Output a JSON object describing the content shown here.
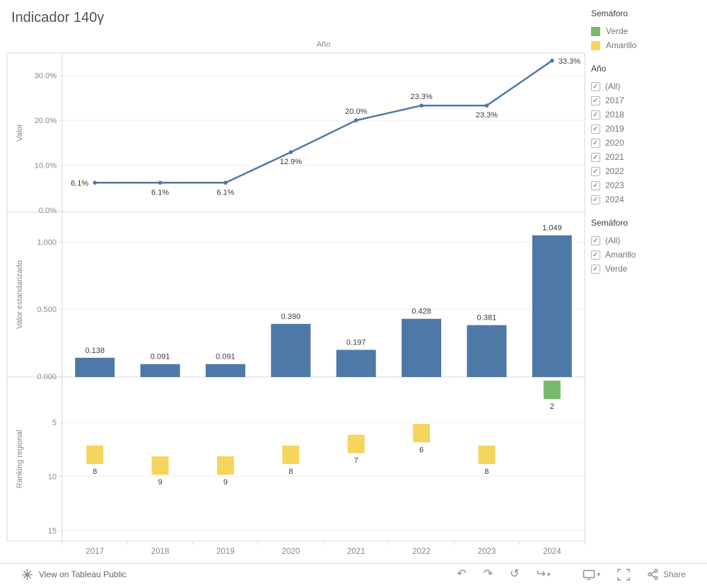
{
  "title": "Indicador 140γ",
  "colors": {
    "series_blue": "#4e79a7",
    "mark_yellow": "#f6d55c",
    "mark_green": "#77b96d",
    "axis_text": "#8a8881",
    "label_text": "#3c3c3c"
  },
  "legend": {
    "title": "Semáforo",
    "items": [
      {
        "label": "Verde",
        "color": "#77b96d"
      },
      {
        "label": "Amarillo",
        "color": "#f6d55c"
      }
    ]
  },
  "filters": {
    "check_glyph": "✓",
    "ano": {
      "title": "Año",
      "items": [
        "(All)",
        "2017",
        "2018",
        "2019",
        "2020",
        "2021",
        "2022",
        "2023",
        "2024"
      ]
    },
    "semaforo": {
      "title": "Semáforo",
      "items": [
        "(All)",
        "Amarillo",
        "Verde"
      ]
    }
  },
  "x_axis": {
    "categories": [
      "2017",
      "2018",
      "2019",
      "2020",
      "2021",
      "2022",
      "2023",
      "2024"
    ]
  },
  "chart_data": [
    {
      "type": "line",
      "title": "Año",
      "ylabel": "Valor",
      "categories": [
        "2017",
        "2018",
        "2019",
        "2020",
        "2021",
        "2022",
        "2023",
        "2024"
      ],
      "values": [
        6.1,
        6.1,
        6.1,
        12.9,
        20.0,
        23.3,
        23.3,
        33.3
      ],
      "point_labels": [
        "6.1%",
        "6.1%",
        "6.1%",
        "12.9%",
        "20.0%",
        "23.3%",
        "23.3%",
        "33.3%"
      ],
      "label_placement": [
        "left",
        "below",
        "below",
        "below",
        "above",
        "above",
        "below",
        "right"
      ],
      "yticks": [
        0,
        10,
        20,
        30
      ],
      "ytick_labels": [
        "0.0%",
        "10.0%",
        "20.0%",
        "30.0%"
      ],
      "ylim": [
        0,
        35
      ],
      "color": "#4e79a7"
    },
    {
      "type": "bar",
      "ylabel": "Valor estandarizado",
      "categories": [
        "2017",
        "2018",
        "2019",
        "2020",
        "2021",
        "2022",
        "2023",
        "2024"
      ],
      "values": [
        0.138,
        0.091,
        0.091,
        0.39,
        0.197,
        0.428,
        0.381,
        1.049
      ],
      "bar_labels": [
        "0.138",
        "0.091",
        "0.091",
        "0.390",
        "0.197",
        "0.428",
        "0.381",
        "1.049"
      ],
      "yticks": [
        0,
        0.5,
        1.0
      ],
      "ytick_labels": [
        "0.000",
        "0.500",
        "1.000"
      ],
      "ylim": [
        0,
        1.22
      ],
      "color": "#4e79a7"
    },
    {
      "type": "scatter",
      "marker": "square",
      "ylabel": "Ranking regional",
      "categories": [
        "2017",
        "2018",
        "2019",
        "2020",
        "2021",
        "2022",
        "2023",
        "2024"
      ],
      "values": [
        8,
        9,
        9,
        8,
        7,
        6,
        8,
        2
      ],
      "point_labels": [
        "8",
        "9",
        "9",
        "8",
        "7",
        "6",
        "8",
        "2"
      ],
      "point_colors": [
        "#f6d55c",
        "#f6d55c",
        "#f6d55c",
        "#f6d55c",
        "#f6d55c",
        "#f6d55c",
        "#f6d55c",
        "#77b96d"
      ],
      "yticks": [
        5,
        10,
        15
      ],
      "ytick_labels": [
        "5",
        "10",
        "15"
      ],
      "ylim": [
        0,
        16
      ],
      "y_inverted": true
    }
  ],
  "toolbar": {
    "view_label": "View on Tableau Public",
    "share_label": "Share",
    "undo_glyph": "↶",
    "redo_glyph": "↷",
    "replay_glyph": "↺",
    "forward_glyph": "↪",
    "caret_glyph": "▾"
  }
}
